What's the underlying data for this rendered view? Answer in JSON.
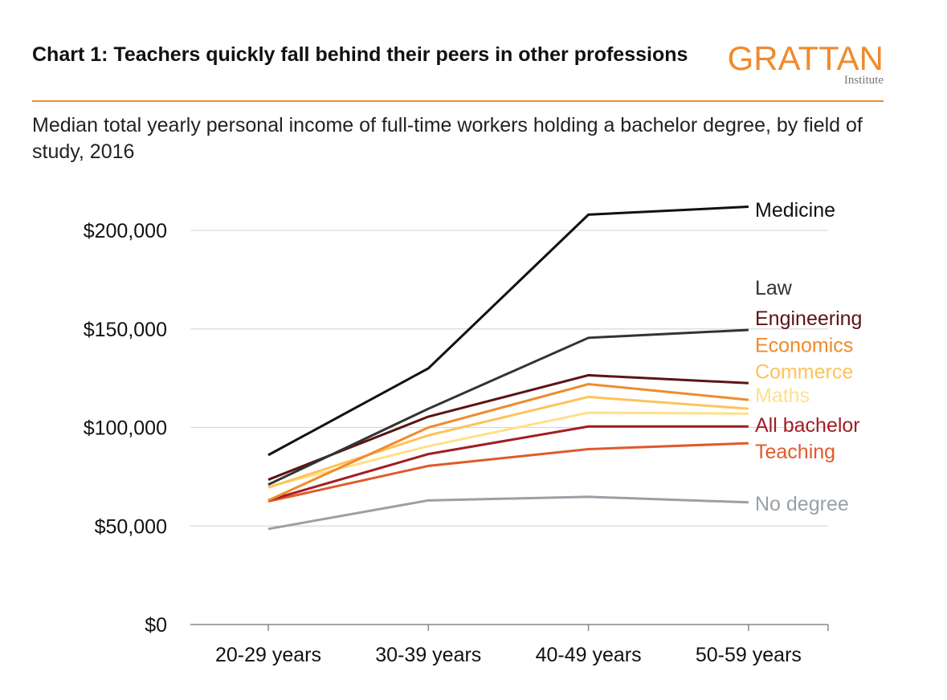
{
  "header": {
    "title": "Chart 1: Teachers quickly fall behind their peers in other professions",
    "subtitle": "Median total yearly personal income of full-time workers holding a bachelor degree, by field of study, 2016"
  },
  "logo": {
    "name": "GRATTAN",
    "sub": "Institute",
    "color": "#f08a2c",
    "sub_color": "#777777"
  },
  "colors": {
    "rule": "#f08a2c",
    "grid": "#d9d9d9",
    "axis": "#888888"
  },
  "chart_data": {
    "type": "line",
    "title": "Chart 1: Teachers quickly fall behind their peers in other professions",
    "xlabel": "",
    "ylabel": "",
    "ylim": [
      0,
      200000
    ],
    "yticks": [
      0,
      50000,
      100000,
      150000,
      200000
    ],
    "ytick_labels": [
      "$0",
      "$50,000",
      "$100,000",
      "$150,000",
      "$200,000"
    ],
    "categories": [
      "20-29 years",
      "30-39 years",
      "40-49 years",
      "50-59 years"
    ],
    "grid": true,
    "legend": "direct labels at right",
    "series": [
      {
        "name": "No degree",
        "color": "#9aa0a6",
        "values": [
          48500,
          63000,
          64800,
          62000
        ],
        "label_value": 61500
      },
      {
        "name": "Teaching",
        "color": "#e05a2b",
        "values": [
          62500,
          80500,
          89000,
          92000
        ],
        "label_value": 88000
      },
      {
        "name": "All bachelor",
        "color": "#a11d24",
        "values": [
          63000,
          86500,
          100500,
          100500
        ],
        "label_value": 101500
      },
      {
        "name": "Maths",
        "color": "#ffe08a",
        "values": [
          70000,
          90500,
          107500,
          107000
        ],
        "label_value": 116500
      },
      {
        "name": "Commerce",
        "color": "#fdc35a",
        "values": [
          69500,
          96000,
          115500,
          109500
        ],
        "label_value": 128500
      },
      {
        "name": "Economics",
        "color": "#f08a2c",
        "values": [
          63000,
          100000,
          122000,
          114000
        ],
        "label_value": 142000
      },
      {
        "name": "Engineering",
        "color": "#5c1414",
        "values": [
          73500,
          105500,
          126500,
          122500
        ],
        "label_value": 155500
      },
      {
        "name": "Law",
        "color": "#333333",
        "values": [
          71000,
          109500,
          145500,
          149500
        ],
        "label_value": 171000
      },
      {
        "name": "Medicine",
        "color": "#111111",
        "values": [
          86000,
          130000,
          208000,
          212000
        ],
        "label_value": 210500
      }
    ]
  }
}
